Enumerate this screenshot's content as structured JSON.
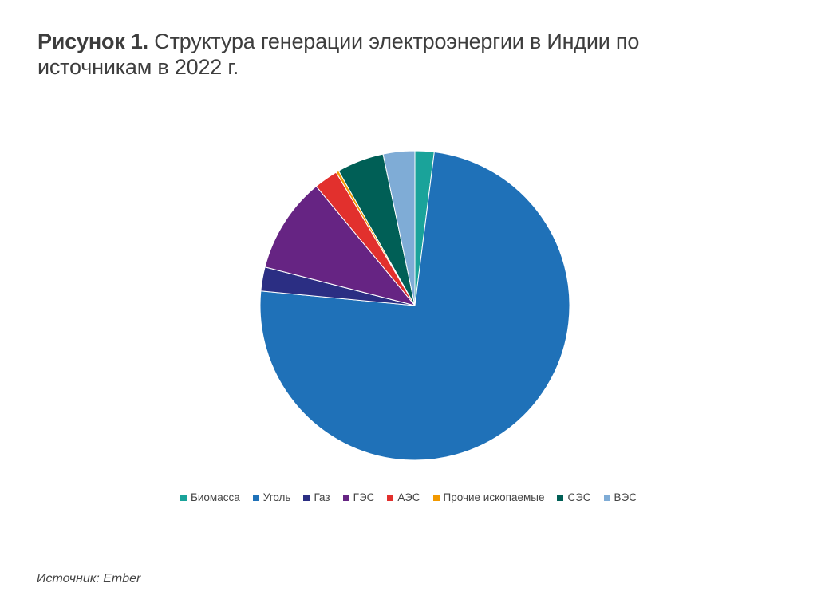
{
  "figure": {
    "title_bold": "Рисунок 1.",
    "title_rest": " Структура генерации электроэнергии в Индии по источникам в 2022 г."
  },
  "source": {
    "label": "Источник:",
    "value": " Ember"
  },
  "chart_data": {
    "type": "pie",
    "title": "",
    "start_angle_deg": 0,
    "direction": "clockwise",
    "legend_position": "bottom",
    "series": [
      {
        "name": "Биомасса",
        "value": 2.0,
        "color": "#1aa39a"
      },
      {
        "name": "Уголь",
        "value": 74.5,
        "color": "#1f71b8"
      },
      {
        "name": "Газ",
        "value": 2.5,
        "color": "#2b2e83"
      },
      {
        "name": "ГЭС",
        "value": 10.0,
        "color": "#662483"
      },
      {
        "name": "АЭС",
        "value": 2.5,
        "color": "#e2302d"
      },
      {
        "name": "Прочие ископаемые",
        "value": 0.3,
        "color": "#f29900"
      },
      {
        "name": "СЭС",
        "value": 4.9,
        "color": "#005f56"
      },
      {
        "name": "ВЭС",
        "value": 3.3,
        "color": "#7facd6"
      }
    ]
  }
}
